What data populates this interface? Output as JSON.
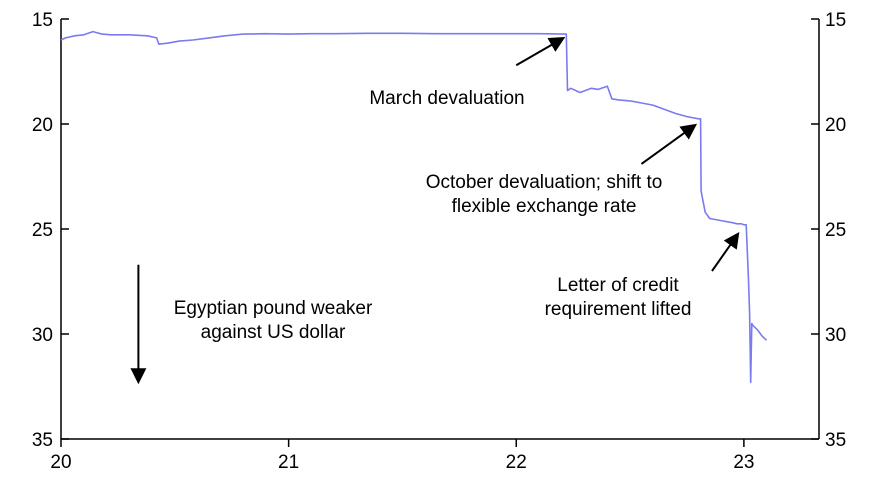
{
  "chart_data": {
    "type": "line",
    "title": "",
    "xlabel": "",
    "ylabel": "",
    "y_inverted": true,
    "ylim": [
      15,
      35
    ],
    "xlim": [
      20,
      23.33
    ],
    "left_y_ticks": [
      "15",
      "20",
      "25",
      "30",
      "35"
    ],
    "right_y_ticks": [
      "15",
      "20",
      "25",
      "30",
      "35"
    ],
    "x_ticks": [
      "20",
      "21",
      "22",
      "23"
    ],
    "grid": false,
    "line_color": "#7b7bf0",
    "series": [
      {
        "x": [
          20.0,
          20.02,
          20.06,
          20.1,
          20.14,
          20.18,
          20.22,
          20.3,
          20.38,
          20.42,
          20.43,
          20.47,
          20.52,
          20.58,
          20.65,
          20.72,
          20.8,
          20.9,
          21.0,
          21.1,
          21.2,
          21.35,
          21.5,
          21.65,
          21.8,
          21.95,
          22.1,
          22.22,
          22.225,
          22.24,
          22.28,
          22.33,
          22.36,
          22.4,
          22.42,
          22.45,
          22.5,
          22.55,
          22.6,
          22.65,
          22.7,
          22.75,
          22.8,
          22.81,
          22.812,
          22.83,
          22.85,
          22.9,
          22.95,
          22.97,
          22.98,
          22.99,
          23.0,
          23.01,
          23.02,
          23.025,
          23.03,
          23.035,
          23.04,
          23.06,
          23.08,
          23.1
        ],
        "y": [
          16.0,
          15.9,
          15.8,
          15.75,
          15.6,
          15.72,
          15.75,
          15.75,
          15.8,
          15.9,
          16.2,
          16.15,
          16.05,
          16.0,
          15.9,
          15.8,
          15.72,
          15.7,
          15.72,
          15.7,
          15.7,
          15.68,
          15.68,
          15.7,
          15.7,
          15.7,
          15.7,
          15.72,
          18.4,
          18.3,
          18.5,
          18.3,
          18.35,
          18.2,
          18.8,
          18.85,
          18.9,
          19.0,
          19.1,
          19.3,
          19.5,
          19.65,
          19.75,
          19.75,
          23.2,
          24.2,
          24.5,
          24.6,
          24.7,
          24.75,
          24.75,
          24.75,
          24.8,
          24.8,
          27.3,
          29.0,
          32.3,
          29.5,
          29.6,
          29.8,
          30.1,
          30.3
        ]
      }
    ],
    "annotations": [
      {
        "text_lines": [
          "March devaluation"
        ],
        "arrow_from": [
          22.0,
          17.2
        ],
        "arrow_to": [
          22.2,
          15.95
        ]
      },
      {
        "text_lines": [
          "October devaluation;  shift to",
          "flexible  exchange rate"
        ],
        "arrow_from": [
          22.55,
          21.9
        ],
        "arrow_to": [
          22.78,
          20.1
        ]
      },
      {
        "text_lines": [
          "Letter of credit",
          "requirement lifted"
        ],
        "arrow_from": [
          22.86,
          27.0
        ],
        "arrow_to": [
          22.97,
          25.3
        ]
      },
      {
        "text_lines": [
          "Egyptian  pound weaker",
          "against US dollar"
        ],
        "arrow_from": [
          20.34,
          26.7
        ],
        "arrow_to": [
          20.34,
          32.2
        ]
      }
    ]
  }
}
